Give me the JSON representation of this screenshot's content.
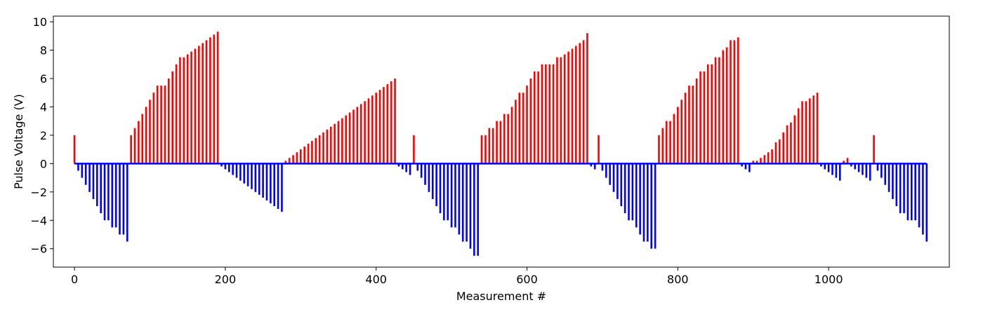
{
  "chart_data": {
    "type": "bar",
    "xlabel": "Measurement #",
    "ylabel": "Pulse Voltage (V)",
    "xlim": [
      -28,
      1160
    ],
    "ylim": [
      -7.3,
      10.4
    ],
    "xticks": [
      0,
      200,
      400,
      600,
      800,
      1000
    ],
    "yticks": [
      -6,
      -4,
      -2,
      0,
      2,
      4,
      6,
      8,
      10
    ],
    "grid": false,
    "legend": "none",
    "colors": {
      "positive": "#ff0000",
      "negative": "#0000ff",
      "baseline": "#0000ff"
    },
    "baseline": {
      "x_start": 0,
      "x_end": 1130
    },
    "series": [
      {
        "color": "#ff0000",
        "x": [
          0,
          75,
          80,
          85,
          90,
          95,
          100,
          105,
          110,
          115,
          120,
          125,
          130,
          135,
          140,
          145,
          150,
          155,
          160,
          165,
          170,
          175,
          180,
          185,
          190,
          280,
          285,
          290,
          295,
          300,
          305,
          310,
          315,
          320,
          325,
          330,
          335,
          340,
          345,
          350,
          355,
          360,
          365,
          370,
          375,
          380,
          385,
          390,
          395,
          400,
          405,
          410,
          415,
          420,
          425,
          450,
          540,
          545,
          550,
          555,
          560,
          565,
          570,
          575,
          580,
          585,
          590,
          595,
          600,
          605,
          610,
          615,
          620,
          625,
          630,
          635,
          640,
          645,
          650,
          655,
          660,
          665,
          670,
          675,
          680,
          695,
          775,
          780,
          785,
          790,
          795,
          800,
          805,
          810,
          815,
          820,
          825,
          830,
          835,
          840,
          845,
          850,
          855,
          860,
          865,
          870,
          875,
          880,
          900,
          905,
          910,
          915,
          920,
          925,
          930,
          935,
          940,
          945,
          950,
          955,
          960,
          965,
          970,
          975,
          980,
          985,
          1020,
          1025,
          1060
        ],
        "values": [
          2.0,
          2.0,
          2.5,
          3.0,
          3.5,
          4.0,
          4.5,
          5.0,
          5.5,
          5.5,
          5.5,
          6.0,
          6.5,
          7.0,
          7.5,
          7.5,
          7.7,
          7.9,
          8.1,
          8.3,
          8.5,
          8.7,
          8.9,
          9.1,
          9.3,
          0.2,
          0.4,
          0.6,
          0.8,
          1.0,
          1.2,
          1.4,
          1.6,
          1.8,
          2.0,
          2.2,
          2.4,
          2.6,
          2.8,
          3.0,
          3.2,
          3.4,
          3.6,
          3.8,
          4.0,
          4.2,
          4.4,
          4.6,
          4.8,
          5.0,
          5.2,
          5.4,
          5.6,
          5.8,
          6.0,
          2.0,
          2.0,
          2.0,
          2.5,
          2.5,
          3.0,
          3.0,
          3.5,
          3.5,
          4.0,
          4.5,
          5.0,
          5.0,
          5.5,
          6.0,
          6.5,
          6.5,
          7.0,
          7.0,
          7.0,
          7.0,
          7.5,
          7.5,
          7.7,
          7.9,
          8.1,
          8.3,
          8.5,
          8.7,
          9.2,
          2.0,
          2.0,
          2.5,
          3.0,
          3.0,
          3.5,
          4.0,
          4.5,
          5.0,
          5.5,
          5.5,
          6.0,
          6.5,
          6.5,
          7.0,
          7.0,
          7.5,
          7.5,
          8.0,
          8.2,
          8.7,
          8.7,
          8.9,
          0.2,
          0.2,
          0.4,
          0.6,
          0.8,
          1.0,
          1.5,
          1.7,
          2.2,
          2.7,
          2.9,
          3.4,
          3.9,
          4.4,
          4.4,
          4.6,
          4.8,
          5.0,
          0.2,
          0.4,
          2.0
        ]
      },
      {
        "color": "#0000ff",
        "x": [
          5,
          10,
          15,
          20,
          25,
          30,
          35,
          40,
          45,
          50,
          55,
          60,
          65,
          70,
          195,
          200,
          205,
          210,
          215,
          220,
          225,
          230,
          235,
          240,
          245,
          250,
          255,
          260,
          265,
          270,
          275,
          430,
          435,
          440,
          445,
          455,
          460,
          465,
          470,
          475,
          480,
          485,
          490,
          495,
          500,
          505,
          510,
          515,
          520,
          525,
          530,
          535,
          685,
          690,
          700,
          705,
          710,
          715,
          720,
          725,
          730,
          735,
          740,
          745,
          750,
          755,
          760,
          765,
          770,
          885,
          890,
          895,
          990,
          995,
          1000,
          1005,
          1010,
          1015,
          1030,
          1035,
          1040,
          1045,
          1050,
          1055,
          1065,
          1070,
          1075,
          1080,
          1085,
          1090,
          1095,
          1100,
          1105,
          1110,
          1115,
          1120,
          1125,
          1130
        ],
        "values": [
          -0.5,
          -1.0,
          -1.5,
          -2.0,
          -2.5,
          -3.0,
          -3.5,
          -4.0,
          -4.0,
          -4.5,
          -4.5,
          -5.0,
          -5.0,
          -5.5,
          -0.2,
          -0.4,
          -0.6,
          -0.8,
          -1.0,
          -1.2,
          -1.4,
          -1.6,
          -1.8,
          -2.0,
          -2.2,
          -2.4,
          -2.6,
          -2.8,
          -3.0,
          -3.2,
          -3.4,
          -0.2,
          -0.4,
          -0.6,
          -0.8,
          -0.5,
          -1.0,
          -1.5,
          -2.0,
          -2.5,
          -3.0,
          -3.5,
          -4.0,
          -4.0,
          -4.5,
          -4.5,
          -5.0,
          -5.5,
          -5.5,
          -6.0,
          -6.5,
          -6.5,
          -0.2,
          -0.4,
          -0.5,
          -1.0,
          -1.5,
          -2.0,
          -2.5,
          -3.0,
          -3.5,
          -4.0,
          -4.0,
          -4.5,
          -5.0,
          -5.5,
          -5.5,
          -6.0,
          -6.0,
          -0.2,
          -0.4,
          -0.6,
          -0.2,
          -0.4,
          -0.6,
          -0.8,
          -1.0,
          -1.2,
          -0.2,
          -0.4,
          -0.6,
          -0.8,
          -1.0,
          -1.2,
          -0.5,
          -1.0,
          -1.5,
          -2.0,
          -2.5,
          -3.0,
          -3.5,
          -3.5,
          -4.0,
          -4.0,
          -4.0,
          -4.5,
          -5.0,
          -5.5
        ]
      }
    ]
  }
}
